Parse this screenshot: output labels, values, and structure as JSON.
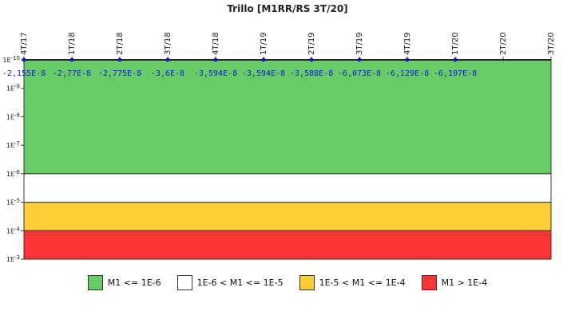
{
  "chart_data": {
    "type": "line",
    "title": "Trillo [M1RR/RS 3T/20]",
    "categories": [
      "4T/17",
      "1T/18",
      "2T/18",
      "3T/18",
      "4T/18",
      "1T/19",
      "2T/19",
      "3T/19",
      "4T/19",
      "1T/20",
      "2T/20",
      "3T/20"
    ],
    "series": [
      {
        "values": [
          -2.155e-08,
          -2.77e-08,
          -2.775e-08,
          -3.6e-08,
          -3.594e-08,
          -3.594e-08,
          -3.588e-08,
          -6.073e-08,
          -6.129e-08,
          -6.107e-08,
          null,
          null
        ],
        "labels": [
          "-2,155E-8",
          "-2,77E-8",
          "-2,775E-8",
          "-3,6E-8",
          "-3,594E-8",
          "-3,594E-8",
          "-3,588E-8",
          "-6,073E-8",
          "-6,129E-8",
          "-6,107E-8",
          "",
          ""
        ],
        "color": "#1a1acc"
      }
    ],
    "y_scale": "log",
    "y_reversed": true,
    "ylim": [
      1e-10,
      0.001
    ],
    "y_ticks": [
      "1E-10",
      "1E-9",
      "1E-8",
      "1E-7",
      "1E-6",
      "1E-5",
      "1E-4",
      "1E-3"
    ],
    "bands": [
      {
        "from": 1e-10,
        "to": 1e-06,
        "color": "#66cc66",
        "label": "M1 <= 1E-6"
      },
      {
        "from": 1e-06,
        "to": 1e-05,
        "color": "#ffffff",
        "label": "1E-6 < M1 <= 1E-5"
      },
      {
        "from": 1e-05,
        "to": 0.0001,
        "color": "#ffcc33",
        "label": "1E-5 < M1 <= 1E-4"
      },
      {
        "from": 0.0001,
        "to": 0.001,
        "color": "#ff3333",
        "label": "M1 > 1E-4"
      }
    ],
    "legend_position": "bottom"
  }
}
